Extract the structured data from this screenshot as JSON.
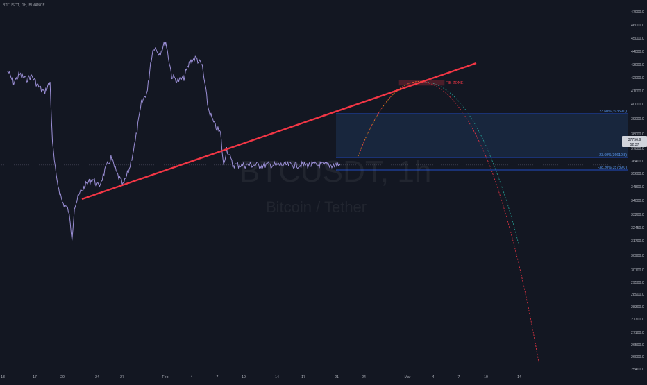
{
  "header": {
    "title": "BTCUSDT, 1h, BINANCE"
  },
  "watermark": {
    "symbol": "BTCUSDT, 1h",
    "description": "Bitcoin / Tether"
  },
  "colors": {
    "background": "#131722",
    "price_line": "#9b8fd6",
    "trendline": "#f23645",
    "fib_line": "#2962ff",
    "fib_zone": "#1e3a5f",
    "projection_red": "#f23645",
    "projection_green": "#26a69a",
    "axis_text": "#b2b5be"
  },
  "chart_data": {
    "type": "line",
    "title": "",
    "xlabel": "",
    "ylabel": "",
    "ylim": [
      25100,
      47600
    ],
    "x_ticks": [
      "13",
      "17",
      "20",
      "24",
      "27",
      "Feb",
      "4",
      "7",
      "10",
      "14",
      "17",
      "21",
      "24",
      "Mar",
      "4",
      "7",
      "10",
      "14"
    ],
    "y_ticks": [
      "47000.0",
      "46000.0",
      "45000.0",
      "44000.0",
      "43000.0",
      "42000.0",
      "41000.0",
      "40000.0",
      "39000.0",
      "38000.0",
      "37000.0",
      "36400.0",
      "35600.0",
      "34800.0",
      "34000.0",
      "33200.0",
      "32450.0",
      "31700.0",
      "30900.0",
      "30100.0",
      "29500.0",
      "28900.0",
      "28300.0",
      "27700.0",
      "27100.0",
      "26500.0",
      "26000.0",
      "25400.0"
    ],
    "series": [
      {
        "values_x": [
          13,
          14,
          15,
          16,
          17,
          18,
          19,
          20,
          20.4,
          21,
          22,
          23,
          23.6,
          24,
          25,
          26,
          27,
          28,
          29,
          30,
          31,
          32,
          33,
          34,
          35,
          36,
          36.5,
          37,
          38,
          39,
          40,
          41,
          42,
          43,
          44,
          45,
          46,
          47,
          48,
          48.5,
          49,
          50,
          51,
          52
        ],
        "values_y": [
          43500,
          42800,
          43300,
          43000,
          43200,
          42600,
          42200,
          42800,
          39000,
          37000,
          35500,
          35000,
          33300,
          35200,
          36100,
          36600,
          36900,
          36400,
          37400,
          38200,
          37200,
          36500,
          37500,
          39200,
          41500,
          42300,
          44000,
          45000,
          44600,
          45300,
          43200,
          42900,
          43100,
          44100,
          44300,
          43800,
          41200,
          40200,
          39700,
          37700,
          38800,
          37756.9,
          37756.9,
          37756.9
        ]
      }
    ],
    "current_price": {
      "label": "37756.9",
      "countdown": "52:37"
    },
    "trendline": {
      "from": {
        "x": 22,
        "y": 34300
      },
      "to": {
        "x": 94,
        "y": 43000
      }
    },
    "fib_levels": [
      {
        "label": "23.60%(39359.0)",
        "value": 39359.0
      },
      {
        "label": "-23.60%(36610.8)",
        "value": 36610.8
      },
      {
        "label": "-38.20%(35789.0)",
        "value": 35789.0
      }
    ],
    "zone_box": {
      "label": "FIB ZONE",
      "y_low": 41550,
      "y_high": 41900
    }
  }
}
